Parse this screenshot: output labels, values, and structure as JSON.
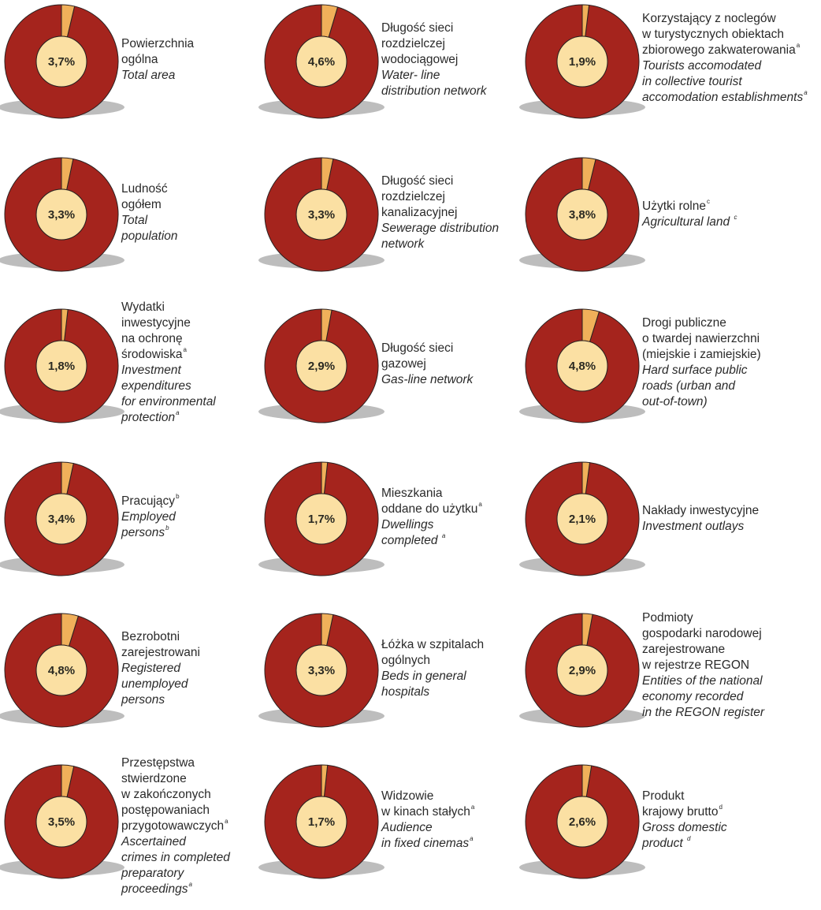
{
  "colors": {
    "share": "#f0b05a",
    "rest": "#a5241d",
    "inner": "#fbe0a3",
    "shadow": "#bdbdbd"
  },
  "chart_data": [
    {
      "type": "pie",
      "values": [
        3.7,
        96.3
      ],
      "label_value": "3,7%",
      "lines": [
        {
          "text": "Powierzchnia"
        },
        {
          "text": "ogólna"
        },
        {
          "text": "Total area",
          "italic": true
        }
      ]
    },
    {
      "type": "pie",
      "values": [
        4.6,
        95.4
      ],
      "label_value": "4,6%",
      "lines": [
        {
          "text": "Długość sieci"
        },
        {
          "text": "rozdzielczej"
        },
        {
          "text": "wodociągowej"
        },
        {
          "text": "Water- line",
          "italic": true
        },
        {
          "text": "distribution network",
          "italic": true
        }
      ]
    },
    {
      "type": "pie",
      "values": [
        1.9,
        98.1
      ],
      "label_value": "1,9%",
      "lines": [
        {
          "text": "Korzystający z noclegów"
        },
        {
          "text": "w turystycznych obiektach"
        },
        {
          "text": "zbiorowego zakwaterowania",
          "sup": "a"
        },
        {
          "text": "Tourists accomodated",
          "italic": true
        },
        {
          "text": "in collective tourist",
          "italic": true
        },
        {
          "text": "accomodation establishments",
          "italic": true,
          "sup": "a"
        }
      ]
    },
    {
      "type": "pie",
      "values": [
        3.3,
        96.7
      ],
      "label_value": "3,3%",
      "lines": [
        {
          "text": "Ludność"
        },
        {
          "text": "ogółem"
        },
        {
          "text": "Total",
          "italic": true
        },
        {
          "text": "population",
          "italic": true
        }
      ]
    },
    {
      "type": "pie",
      "values": [
        3.3,
        96.7
      ],
      "label_value": "3,3%",
      "lines": [
        {
          "text": "Długość sieci"
        },
        {
          "text": "rozdzielczej"
        },
        {
          "text": "kanalizacyjnej"
        },
        {
          "text": "Sewerage distribution",
          "italic": true
        },
        {
          "text": "network",
          "italic": true
        }
      ]
    },
    {
      "type": "pie",
      "values": [
        3.8,
        96.2
      ],
      "label_value": "3,8%",
      "lines": [
        {
          "text": "Użytki rolne",
          "sup": "c"
        },
        {
          "text": "Agricultural land ",
          "italic": true,
          "sup": "c"
        }
      ]
    },
    {
      "type": "pie",
      "values": [
        1.8,
        98.2
      ],
      "label_value": "1,8%",
      "lines": [
        {
          "text": "Wydatki"
        },
        {
          "text": "inwestycyjne"
        },
        {
          "text": "na ochronę"
        },
        {
          "text": "środowiska",
          "sup": "a"
        },
        {
          "text": "Investment",
          "italic": true
        },
        {
          "text": "expenditures",
          "italic": true
        },
        {
          "text": "for environmental",
          "italic": true
        },
        {
          "text": "protection",
          "italic": true,
          "sup": "a"
        }
      ]
    },
    {
      "type": "pie",
      "values": [
        2.9,
        97.1
      ],
      "label_value": "2,9%",
      "lines": [
        {
          "text": "Długość sieci"
        },
        {
          "text": "gazowej"
        },
        {
          "text": "Gas-line network",
          "italic": true
        }
      ]
    },
    {
      "type": "pie",
      "values": [
        4.8,
        95.2
      ],
      "label_value": "4,8%",
      "lines": [
        {
          "text": "Drogi publiczne"
        },
        {
          "text": "o twardej nawierzchni"
        },
        {
          "text": "(miejskie i zamiejskie)"
        },
        {
          "text": "Hard surface public",
          "italic": true
        },
        {
          "text": "roads (urban and",
          "italic": true
        },
        {
          "text": "out-of-town)",
          "italic": true
        }
      ]
    },
    {
      "type": "pie",
      "values": [
        3.4,
        96.6
      ],
      "label_value": "3,4%",
      "lines": [
        {
          "text": "Pracujący",
          "sup": "b"
        },
        {
          "text": "Employed",
          "italic": true
        },
        {
          "text": "persons",
          "italic": true,
          "sup": "b"
        }
      ]
    },
    {
      "type": "pie",
      "values": [
        1.7,
        98.3
      ],
      "label_value": "1,7%",
      "lines": [
        {
          "text": "Mieszkania"
        },
        {
          "text": "oddane do użytku",
          "sup": "a"
        },
        {
          "text": "Dwellings",
          "italic": true
        },
        {
          "text": "completed ",
          "italic": true,
          "sup": "a"
        }
      ]
    },
    {
      "type": "pie",
      "values": [
        2.1,
        97.9
      ],
      "label_value": "2,1%",
      "lines": [
        {
          "text": "Nakłady inwestycyjne"
        },
        {
          "text": "Investment outlays",
          "italic": true
        }
      ]
    },
    {
      "type": "pie",
      "values": [
        4.8,
        95.2
      ],
      "label_value": "4,8%",
      "lines": [
        {
          "text": "Bezrobotni"
        },
        {
          "text": "zarejestrowani"
        },
        {
          "text": "Registered",
          "italic": true
        },
        {
          "text": "unemployed",
          "italic": true
        },
        {
          "text": "persons",
          "italic": true
        }
      ]
    },
    {
      "type": "pie",
      "values": [
        3.3,
        96.7
      ],
      "label_value": "3,3%",
      "lines": [
        {
          "text": "Łóżka w szpitalach"
        },
        {
          "text": "ogólnych"
        },
        {
          "text": "Beds in general",
          "italic": true
        },
        {
          "text": "hospitals",
          "italic": true
        }
      ]
    },
    {
      "type": "pie",
      "values": [
        2.9,
        97.1
      ],
      "label_value": "2,9%",
      "lines": [
        {
          "text": "Podmioty"
        },
        {
          "text": "gospodarki narodowej"
        },
        {
          "text": "zarejestrowane"
        },
        {
          "text": "w rejestrze REGON"
        },
        {
          "text": "Entities of the national",
          "italic": true
        },
        {
          "text": "economy recorded",
          "italic": true
        },
        {
          "text": "in the REGON register",
          "italic": true
        }
      ]
    },
    {
      "type": "pie",
      "values": [
        3.5,
        96.5
      ],
      "label_value": "3,5%",
      "lines": [
        {
          "text": "Przestępstwa"
        },
        {
          "text": "stwierdzone"
        },
        {
          "text": "w zakończonych"
        },
        {
          "text": "postępowaniach"
        },
        {
          "text": "przygotowawczych",
          "sup": "a"
        },
        {
          "text": "Ascertained",
          "italic": true
        },
        {
          "text": "crimes in completed",
          "italic": true
        },
        {
          "text": "preparatory",
          "italic": true
        },
        {
          "text": "proceedings",
          "italic": true,
          "sup": "a"
        }
      ]
    },
    {
      "type": "pie",
      "values": [
        1.7,
        98.3
      ],
      "label_value": "1,7%",
      "lines": [
        {
          "text": "Widzowie"
        },
        {
          "text": "w kinach stałych",
          "sup": "a"
        },
        {
          "text": "Audience",
          "italic": true
        },
        {
          "text": "in fixed cinemas",
          "italic": true,
          "sup": "a"
        }
      ]
    },
    {
      "type": "pie",
      "values": [
        2.6,
        97.4
      ],
      "label_value": "2,6%",
      "lines": [
        {
          "text": "Produkt"
        },
        {
          "text": "krajowy brutto",
          "sup": "d"
        },
        {
          "text": "Gross domestic",
          "italic": true
        },
        {
          "text": "product ",
          "italic": true,
          "sup": "d"
        }
      ]
    }
  ]
}
